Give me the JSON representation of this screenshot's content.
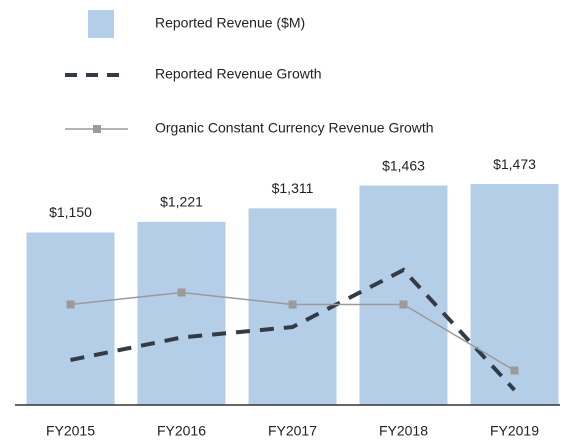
{
  "chart_data": {
    "type": "bar",
    "categories": [
      "FY2015",
      "FY2016",
      "FY2017",
      "FY2018",
      "FY2019"
    ],
    "series": [
      {
        "name": "Reported Revenue ($M)",
        "color": "#b4cee7",
        "values": [
          1150,
          1221,
          1311,
          1463,
          1473
        ],
        "value_labels": [
          "$1,150",
          "$1,221",
          "$1,311",
          "$1,463",
          "$1,473"
        ]
      },
      {
        "name": "Reported Revenue Growth",
        "type": "line",
        "style": "dashed",
        "color": "#333c46",
        "axis": "y2",
        "values": [
          1.0,
          2.5,
          3.2,
          7.0,
          -1.0
        ]
      },
      {
        "name": "Organic Constant Currency Revenue Growth",
        "type": "line",
        "style": "solid",
        "marker": "square",
        "color": "#9a9a9a",
        "axis": "y2",
        "values": [
          4.7,
          5.5,
          4.7,
          4.7,
          0.3
        ]
      }
    ],
    "ylim": [
      0,
      1600
    ],
    "y2lim": [
      -2,
      14
    ]
  }
}
